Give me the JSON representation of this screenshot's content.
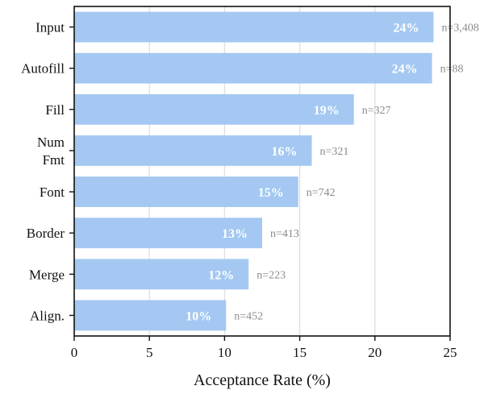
{
  "chart_data": {
    "type": "bar",
    "orientation": "horizontal",
    "categories": [
      {
        "lines": [
          "Input"
        ]
      },
      {
        "lines": [
          "Autofill"
        ]
      },
      {
        "lines": [
          "Fill"
        ]
      },
      {
        "lines": [
          "Num",
          "Fmt"
        ]
      },
      {
        "lines": [
          "Font"
        ]
      },
      {
        "lines": [
          "Border"
        ]
      },
      {
        "lines": [
          "Merge"
        ]
      },
      {
        "lines": [
          "Align."
        ]
      }
    ],
    "values": [
      23.9,
      23.8,
      18.6,
      15.8,
      14.9,
      12.5,
      11.6,
      10.1
    ],
    "value_labels": [
      "24%",
      "24%",
      "19%",
      "16%",
      "15%",
      "13%",
      "12%",
      "10%"
    ],
    "n_labels": [
      "n=3,408",
      "n=88",
      "n=327",
      "n=321",
      "n=742",
      "n=413",
      "n=223",
      "n=452"
    ],
    "xlabel": "Acceptance Rate (%)",
    "xlim": [
      0,
      25
    ],
    "xticks": [
      0,
      5,
      10,
      15,
      20,
      25
    ],
    "xtick_labels": [
      "0",
      "5",
      "10",
      "15",
      "20",
      "25"
    ],
    "grid": "vertical",
    "bar_color": "#a4c8f2",
    "grid_color": "#e0e0e0"
  }
}
